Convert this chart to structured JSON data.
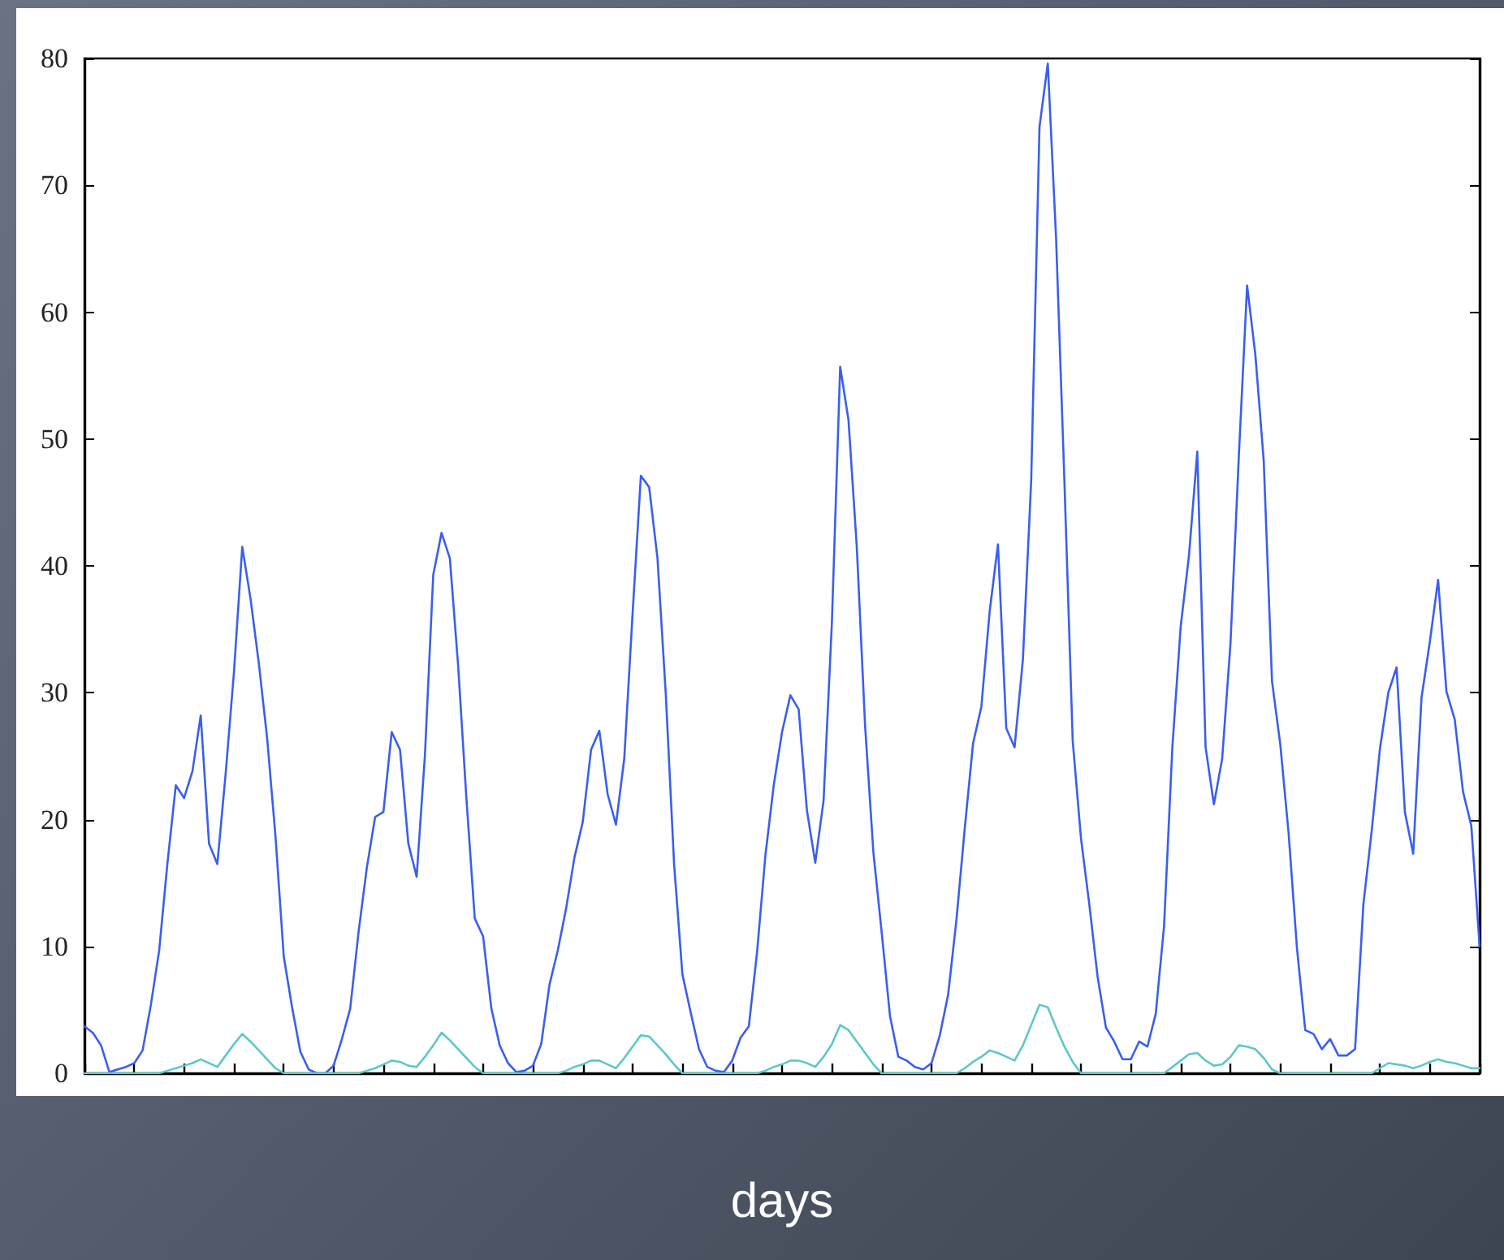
{
  "chart_data": {
    "type": "line",
    "xlabel": "days",
    "categories": [
      null,
      null,
      null,
      null,
      null,
      null,
      null,
      null,
      null,
      null,
      null,
      null,
      null,
      null,
      null,
      null,
      null,
      null,
      null,
      null,
      null,
      null,
      null,
      null,
      null,
      null,
      null,
      null,
      null,
      null,
      null,
      null,
      null,
      null,
      null,
      null,
      null,
      null,
      null,
      null,
      null,
      null,
      null,
      null,
      null,
      null,
      null,
      null,
      null,
      null,
      null,
      null,
      null,
      null,
      null,
      null,
      null,
      null,
      null,
      null,
      null,
      null,
      null,
      null,
      null,
      null,
      null,
      null,
      null,
      null,
      null,
      null,
      null,
      null,
      null,
      null,
      null,
      null,
      null,
      null,
      null,
      null,
      null,
      null,
      null,
      null,
      null,
      null,
      null,
      null,
      null,
      null,
      null,
      null,
      null,
      null,
      null,
      null,
      null,
      null,
      null,
      null,
      null,
      null,
      null,
      null,
      null,
      null,
      null,
      null,
      null,
      null,
      null,
      null,
      null,
      null,
      null,
      null,
      null,
      null,
      null,
      null,
      null,
      null,
      null,
      null,
      null,
      null,
      null,
      null,
      null,
      null,
      null,
      null,
      null,
      null,
      null,
      null,
      null,
      null,
      null,
      null,
      null,
      null,
      null,
      null,
      null,
      null,
      null,
      null,
      null,
      null,
      null,
      null,
      null,
      null,
      null,
      null,
      null,
      null,
      null,
      null,
      null,
      null,
      null,
      null,
      null,
      null,
      null
    ],
    "series": [
      {
        "color": "#3a5ef0",
        "values": [
          3.7,
          3.2,
          2.2,
          0.1,
          0.3,
          0.5,
          0.8,
          1.8,
          5.4,
          9.7,
          16.6,
          22.7,
          21.7,
          23.8,
          28.2,
          18.1,
          16.5,
          23.6,
          31.6,
          41.5,
          37.4,
          32.3,
          26.4,
          18.7,
          9.2,
          5.2,
          1.7,
          0.3,
          0,
          0,
          0.6,
          2.7,
          5.1,
          11.1,
          16.2,
          20.2,
          20.6,
          26.9,
          25.5,
          18.1,
          15.5,
          25.1,
          39.3,
          42.6,
          40.6,
          32.1,
          21.6,
          12.2,
          10.8,
          5.1,
          2.2,
          0.8,
          0.1,
          0.2,
          0.6,
          2.3,
          7.0,
          9.7,
          13,
          17,
          19.8,
          25.5,
          27,
          22,
          19.6,
          24.8,
          36.2,
          47.1,
          46.2,
          40.6,
          29.9,
          16.5,
          7.8,
          4.8,
          1.9,
          0.5,
          0.2,
          0.1,
          1.0,
          2.8,
          3.7,
          9.6,
          17.2,
          22.7,
          26.9,
          29.8,
          28.7,
          20.7,
          16.6,
          21.5,
          35.5,
          55.7,
          51.5,
          41.5,
          27.4,
          17.4,
          11.1,
          4.5,
          1.3,
          1.0,
          0.5,
          0.3,
          0.8,
          3.0,
          6.2,
          12.1,
          19.3,
          26,
          28.9,
          36.4,
          41.7,
          27.2,
          25.7,
          32.6,
          46.7,
          74.6,
          79.6,
          65.8,
          46.7,
          26.2,
          18.5,
          13.3,
          7.6,
          3.6,
          2.5,
          1.1,
          1.1,
          2.5,
          2.1,
          4.7,
          11.6,
          25.7,
          35.2,
          40.8,
          49,
          25.7,
          21.2,
          24.8,
          33.9,
          48.6,
          62.1,
          56.6,
          48.3,
          30.9,
          25.9,
          18.9,
          9.9,
          3.4,
          3.1,
          1.9,
          2.7,
          1.4,
          1.4,
          1.9,
          13.3,
          19.1,
          25.6,
          30,
          32,
          20.6,
          17.3,
          29.6,
          34,
          38.9,
          30.1,
          27.9,
          22.2,
          19.5,
          10
        ]
      },
      {
        "color": "#5cc8c8",
        "values": [
          0,
          0,
          0,
          0,
          0,
          0,
          0,
          0,
          0,
          0,
          0.2,
          0.4,
          0.6,
          0.8,
          1.1,
          0.8,
          0.5,
          1.4,
          2.3,
          3.1,
          2.5,
          1.8,
          1.1,
          0.4,
          0,
          0,
          0,
          0,
          0,
          0,
          0,
          0,
          0,
          0,
          0.2,
          0.4,
          0.7,
          1.0,
          0.9,
          0.6,
          0.5,
          1.3,
          2.2,
          3.2,
          2.6,
          1.9,
          1.2,
          0.5,
          0,
          0,
          0,
          0,
          0,
          0,
          0,
          0,
          0,
          0,
          0.2,
          0.5,
          0.7,
          1.0,
          1.0,
          0.7,
          0.4,
          1.2,
          2.1,
          3.0,
          2.9,
          2.2,
          1.5,
          0.7,
          0,
          0,
          0,
          0,
          0,
          0,
          0,
          0,
          0,
          0,
          0.2,
          0.5,
          0.7,
          1.0,
          1.0,
          0.8,
          0.5,
          1.3,
          2.3,
          3.8,
          3.4,
          2.5,
          1.6,
          0.7,
          0,
          0,
          0,
          0,
          0,
          0,
          0,
          0,
          0,
          0,
          0.4,
          0.9,
          1.3,
          1.8,
          1.6,
          1.3,
          1.0,
          2.2,
          3.8,
          5.4,
          5.2,
          3.6,
          2.1,
          0.9,
          0,
          0,
          0,
          0,
          0,
          0,
          0,
          0,
          0,
          0,
          0,
          0.5,
          1.0,
          1.5,
          1.6,
          1.0,
          0.6,
          0.7,
          1.3,
          2.2,
          2.1,
          1.9,
          1.2,
          0.3,
          0,
          0,
          0,
          0,
          0,
          0,
          0,
          0,
          0,
          0,
          0,
          0,
          0.4,
          0.8,
          0.7,
          0.6,
          0.4,
          0.6,
          0.9,
          1.1,
          0.9,
          0.8,
          0.6,
          0.4,
          0.4
        ]
      }
    ],
    "ylim": [
      0,
      80
    ],
    "yticks": [
      0,
      10,
      20,
      30,
      40,
      50,
      60,
      70,
      80
    ],
    "tick_labels": "y"
  }
}
